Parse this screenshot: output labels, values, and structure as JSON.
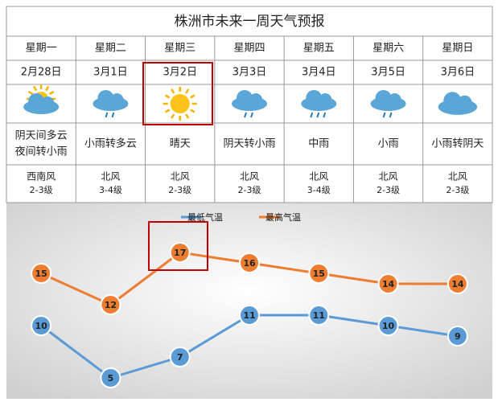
{
  "table": {
    "title": "株洲市未来一周天气预报",
    "weekdays": [
      "星期一",
      "星期二",
      "星期三",
      "星期四",
      "星期五",
      "星期六",
      "星期日"
    ],
    "dates": [
      "2月28日",
      "3月1日",
      "3月2日",
      "3月3日",
      "3月4日",
      "3月5日",
      "3月6日"
    ],
    "weather": [
      [
        "阴天间多云",
        "夜间转小雨"
      ],
      [
        "小雨转多云"
      ],
      [
        "晴天"
      ],
      [
        "阴天转小雨"
      ],
      [
        "中雨"
      ],
      [
        "小雨"
      ],
      [
        "小雨转阴天"
      ]
    ],
    "wind": [
      [
        "西南风",
        "2-3级"
      ],
      [
        "北风",
        "3-4级"
      ],
      [
        "北风",
        "2-3级"
      ],
      [
        "北风",
        "2-3级"
      ],
      [
        "北风",
        "3-4级"
      ],
      [
        "北风",
        "2-3级"
      ],
      [
        "北风",
        "2-3级"
      ]
    ]
  },
  "chart_data": {
    "type": "line",
    "series": [
      {
        "name": "最低气温",
        "color": "#5b9bd5",
        "values": [
          10,
          5,
          7,
          11,
          11,
          10,
          9
        ]
      },
      {
        "name": "最高气温",
        "color": "#ed7d31",
        "values": [
          15,
          12,
          17,
          16,
          15,
          14,
          14
        ]
      }
    ]
  }
}
